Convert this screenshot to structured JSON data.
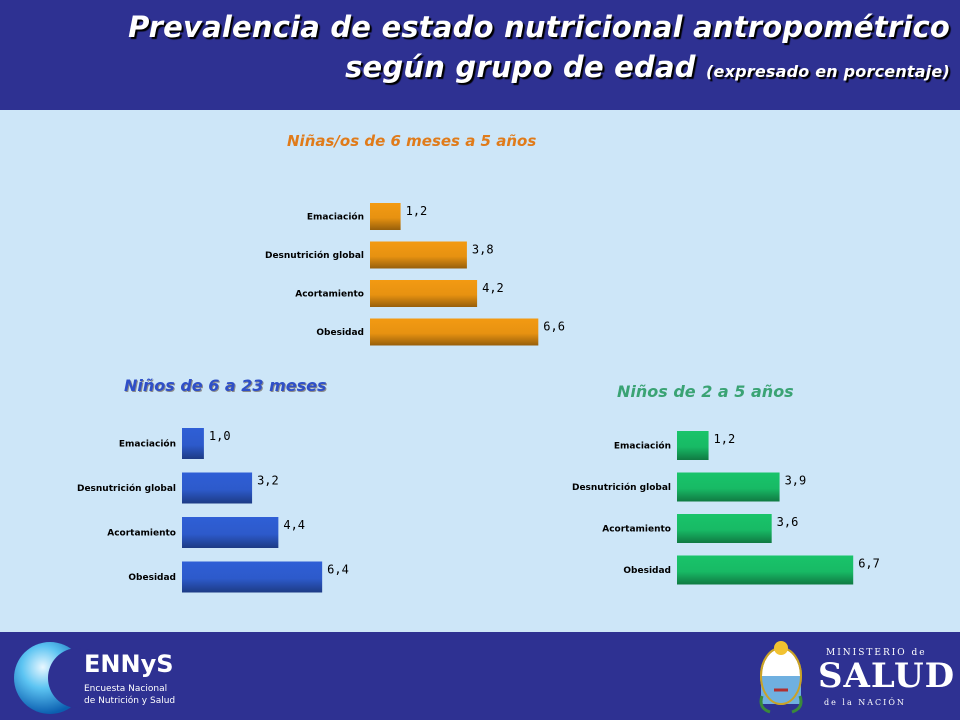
{
  "header": {
    "title_line1": "Prevalencia de estado nutricional antropométrico",
    "title_line2": "según grupo de edad",
    "title_note": "(expresado en porcentaje)"
  },
  "chart_data": [
    {
      "type": "bar",
      "orientation": "horizontal",
      "title": "Niñas/os de 6 meses a 5 años",
      "categories": [
        "Emaciación",
        "Desnutrición global",
        "Acortamiento",
        "Obesidad"
      ],
      "values": [
        1.2,
        3.8,
        4.2,
        6.6
      ],
      "value_labels": [
        "1,2",
        "3,8",
        "4,2",
        "6,6"
      ],
      "color": "#f39a12",
      "title_color": "#e07b1a",
      "grid": false,
      "legend": "none"
    },
    {
      "type": "bar",
      "orientation": "horizontal",
      "title": "Niños de 6 a 23 meses",
      "categories": [
        "Emaciación",
        "Desnutrición global",
        "Acortamiento",
        "Obesidad"
      ],
      "values": [
        1.0,
        3.2,
        4.4,
        6.4
      ],
      "value_labels": [
        "1,0",
        "3,2",
        "4,4",
        "6,4"
      ],
      "color": "#2f5fd6",
      "title_color": "#2f4fc7",
      "grid": false,
      "legend": "none"
    },
    {
      "type": "bar",
      "orientation": "horizontal",
      "title": "Niños de 2 a 5  años",
      "categories": [
        "Emaciación",
        "Desnutrición global",
        "Acortamiento",
        "Obesidad"
      ],
      "values": [
        1.2,
        3.9,
        3.6,
        6.7
      ],
      "value_labels": [
        "1,2",
        "3,9",
        "3,6",
        "6,7"
      ],
      "color": "#19c46a",
      "title_color": "#3aa374",
      "grid": false,
      "legend": "none"
    }
  ],
  "footer": {
    "ennys_name": "ENNyS",
    "ennys_sub1": "Encuesta Nacional",
    "ennys_sub2": "de Nutrición y Salud",
    "ministry_top": "MINISTERIO de",
    "ministry_name": "SALUD",
    "ministry_bottom": "de la NACIÓN"
  }
}
